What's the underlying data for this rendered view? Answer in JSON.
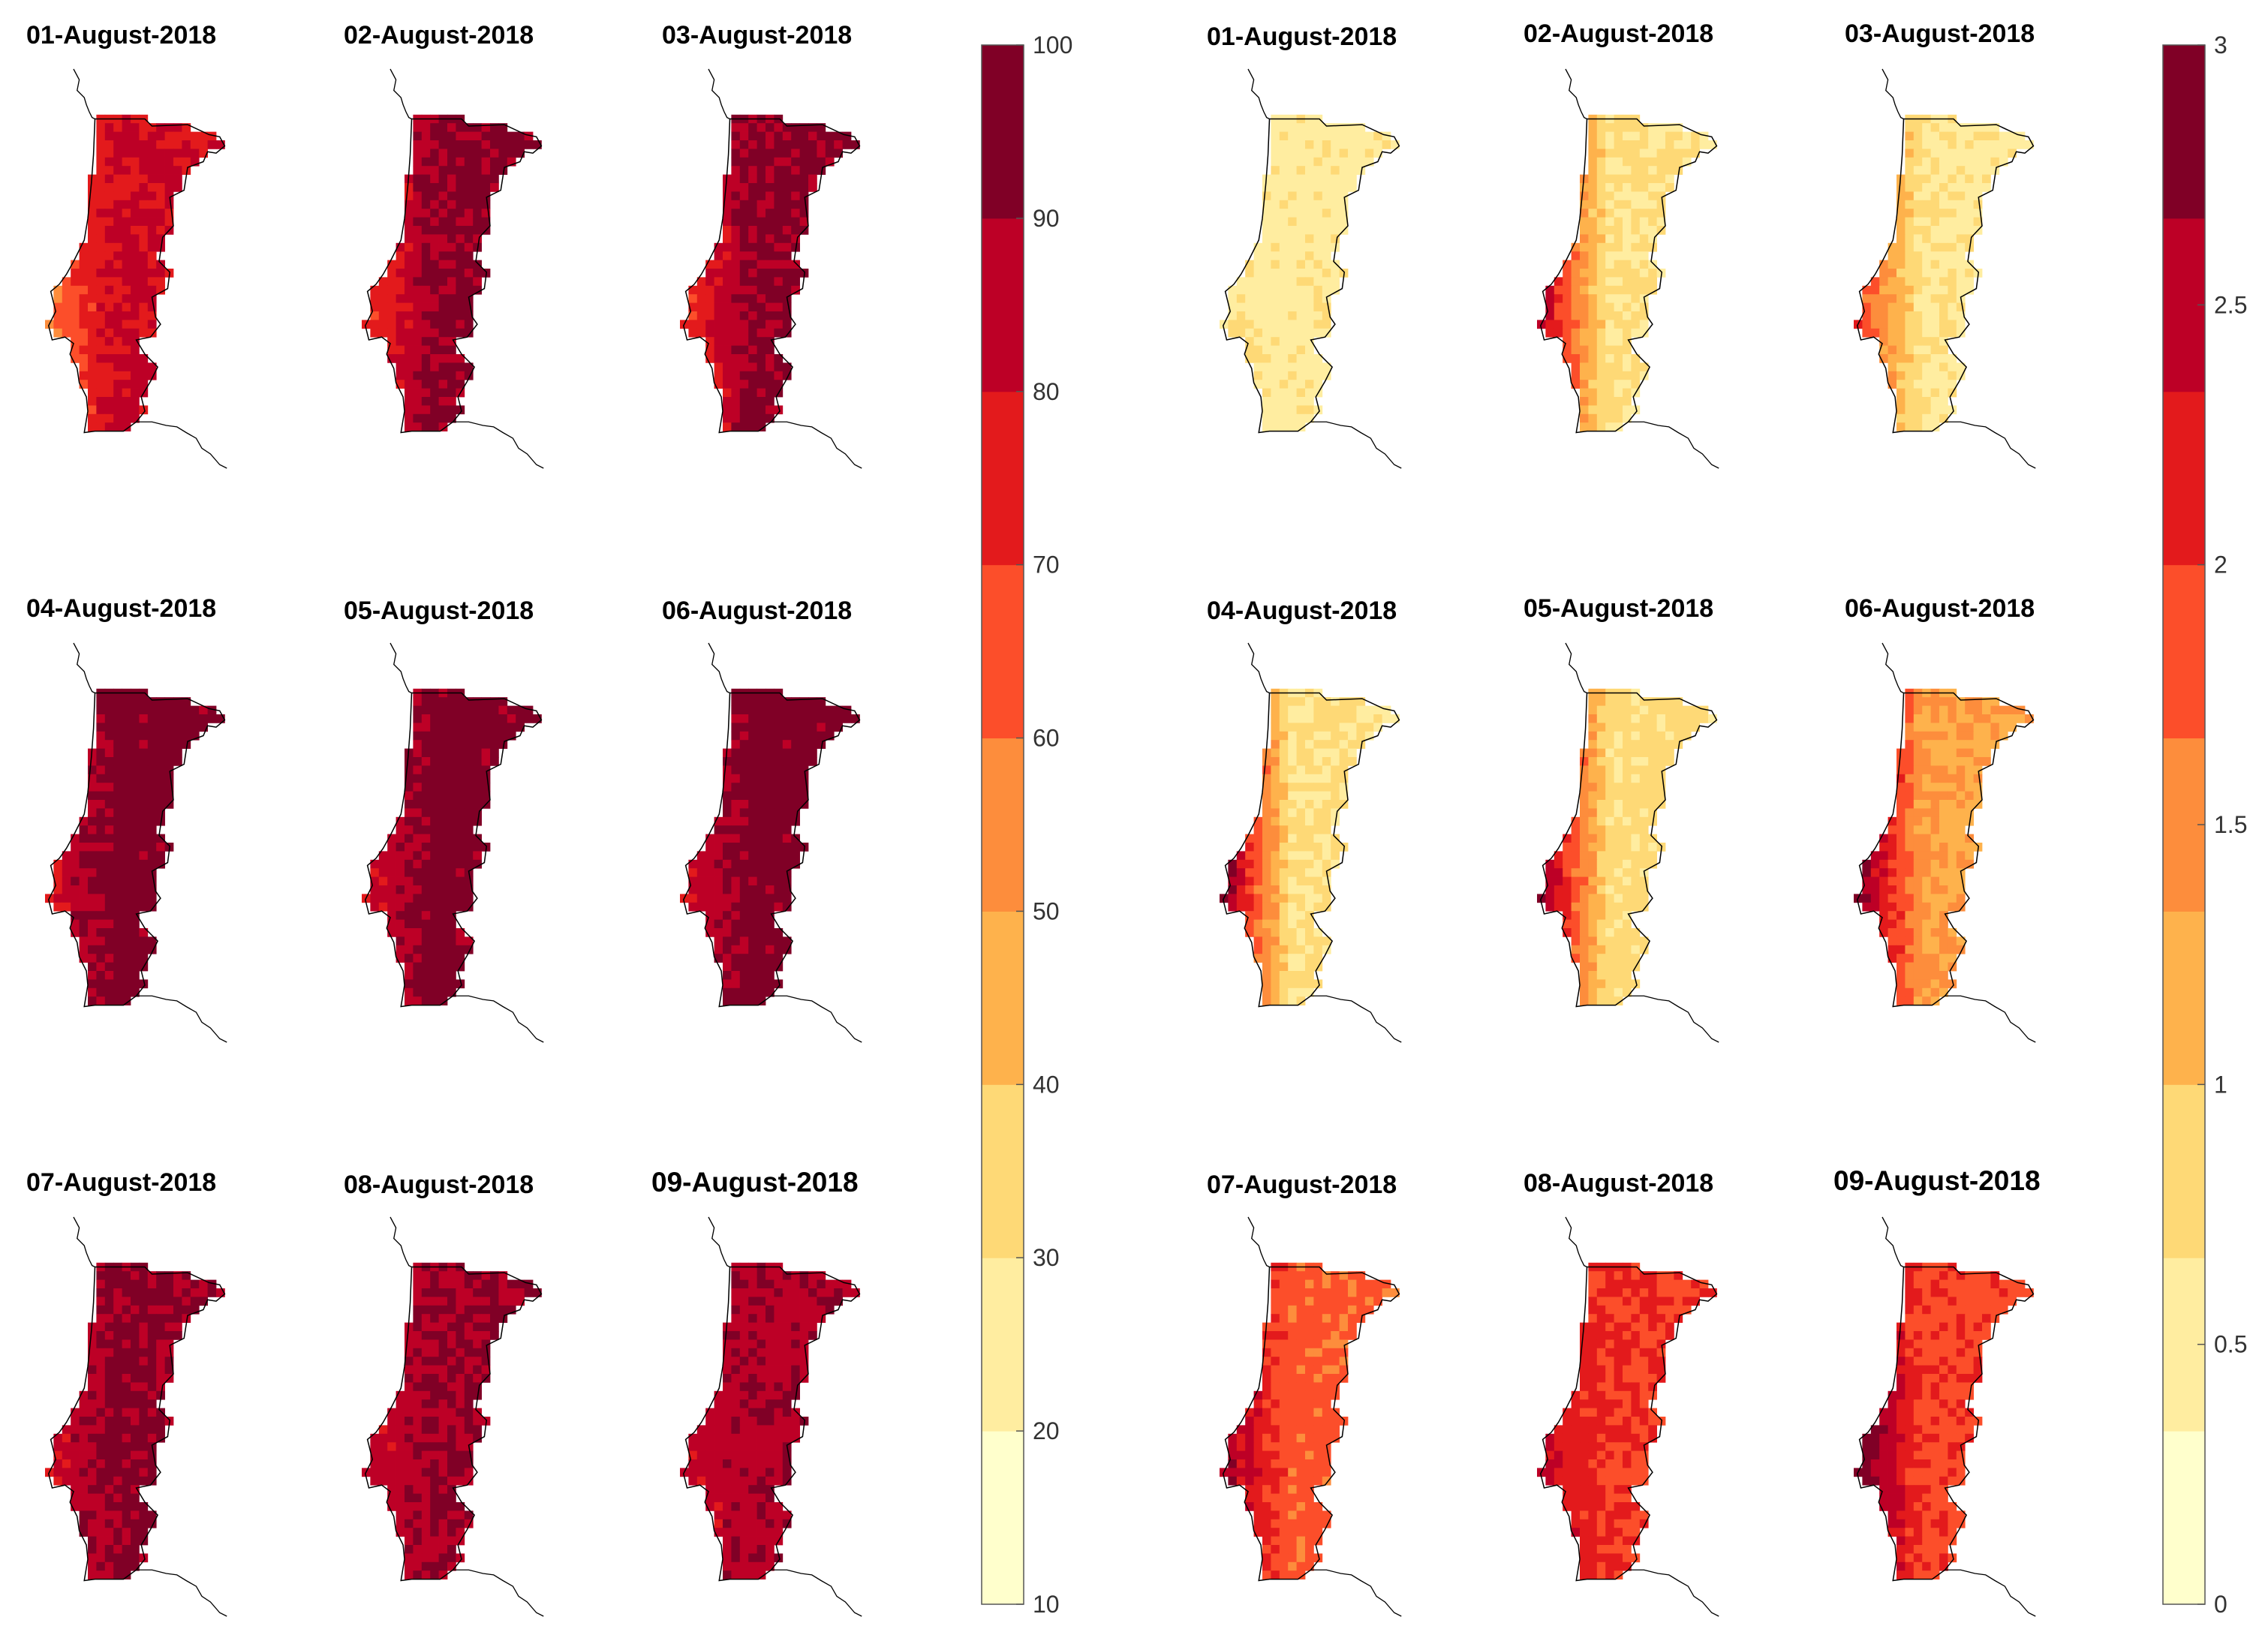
{
  "groups": [
    {
      "name": "left",
      "panels": [
        {
          "title": "01-August-2018",
          "level": 82,
          "coast": 60
        },
        {
          "title": "02-August-2018",
          "level": 92,
          "coast": 70
        },
        {
          "title": "03-August-2018",
          "level": 92,
          "coast": 72
        },
        {
          "title": "04-August-2018",
          "level": 95,
          "coast": 80
        },
        {
          "title": "05-August-2018",
          "level": 95,
          "coast": 80
        },
        {
          "title": "06-August-2018",
          "level": 95,
          "coast": 80
        },
        {
          "title": "07-August-2018",
          "level": 92,
          "coast": 82
        },
        {
          "title": "08-August-2018",
          "level": 90,
          "coast": 82
        },
        {
          "title": "09-August-2018",
          "level": 88,
          "coast": 82
        }
      ],
      "colorbar": {
        "min": 10,
        "max": 100,
        "ticks": [
          "10",
          "20",
          "30",
          "40",
          "50",
          "60",
          "70",
          "80",
          "90",
          "100"
        ]
      }
    },
    {
      "name": "right",
      "panels": [
        {
          "title": "01-August-2018",
          "level": 0.55,
          "coast": 0.6
        },
        {
          "title": "02-August-2018",
          "level": 0.7,
          "coast": 2.5
        },
        {
          "title": "03-August-2018",
          "level": 0.6,
          "coast": 1.9
        },
        {
          "title": "04-August-2018",
          "level": 0.7,
          "coast": 2.8
        },
        {
          "title": "05-August-2018",
          "level": 0.8,
          "coast": 2.7
        },
        {
          "title": "06-August-2018",
          "level": 1.3,
          "coast": 2.8
        },
        {
          "title": "07-August-2018",
          "level": 1.8,
          "coast": 2.6
        },
        {
          "title": "08-August-2018",
          "level": 2.0,
          "coast": 2.4
        },
        {
          "title": "09-August-2018",
          "level": 1.9,
          "coast": 2.9
        }
      ],
      "colorbar": {
        "min": 0,
        "max": 3,
        "ticks": [
          "0",
          "0.5",
          "1",
          "1.5",
          "2",
          "2.5",
          "3"
        ]
      }
    }
  ],
  "colors": {
    "palette": [
      "#ffffcc",
      "#ffeda0",
      "#fed976",
      "#feb24c",
      "#fd8d3c",
      "#fc4e2a",
      "#e31a1c",
      "#bd0026",
      "#800026"
    ],
    "outline": "#000000"
  }
}
